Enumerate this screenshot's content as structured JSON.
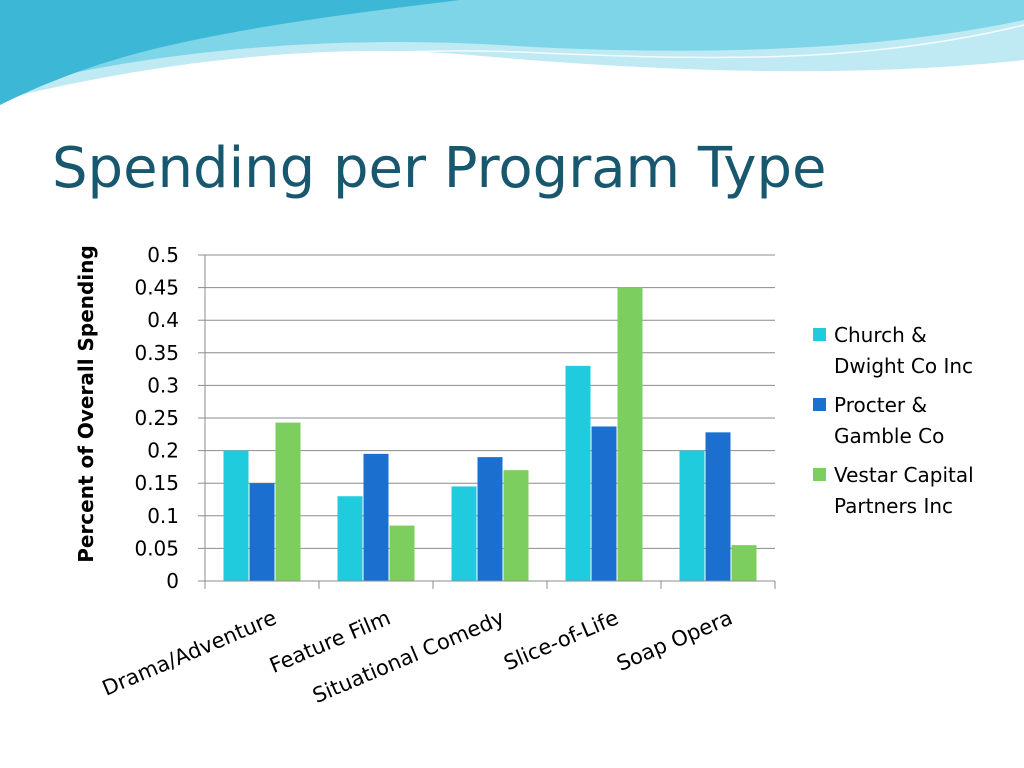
{
  "slide": {
    "title": "Spending per Program Type"
  },
  "colors": {
    "title": "#17586f",
    "wave_light": "#bfeaf3",
    "wave_mid": "#7fd5e8",
    "wave_dark": "#3cb8d6"
  },
  "chart_data": {
    "type": "bar",
    "title": "",
    "xlabel": "",
    "ylabel": "Percent of Overall Spending",
    "ylim": [
      0,
      0.5
    ],
    "yticks": [
      "0",
      "0.05",
      "0.1",
      "0.15",
      "0.2",
      "0.25",
      "0.3",
      "0.35",
      "0.4",
      "0.45",
      "0.5"
    ],
    "categories": [
      "Drama/Adventure",
      "Feature Film",
      "Situational Comedy",
      "Slice-of-Life",
      "Soap Opera"
    ],
    "grid": true,
    "legend_position": "right",
    "series": [
      {
        "name": "Church & Dwight Co Inc",
        "legend_lines": [
          "Church &",
          "Dwight Co Inc"
        ],
        "color": "#1fcbdd",
        "values": [
          0.2,
          0.13,
          0.145,
          0.33,
          0.2
        ]
      },
      {
        "name": "Procter & Gamble Co",
        "legend_lines": [
          "Procter &",
          "Gamble Co"
        ],
        "color": "#1a6fcf",
        "values": [
          0.15,
          0.195,
          0.19,
          0.237,
          0.228
        ]
      },
      {
        "name": "Vestar Capital Partners Inc",
        "legend_lines": [
          "Vestar Capital",
          "Partners Inc"
        ],
        "color": "#7ccf5e",
        "values": [
          0.243,
          0.085,
          0.17,
          0.45,
          0.055
        ]
      }
    ]
  }
}
